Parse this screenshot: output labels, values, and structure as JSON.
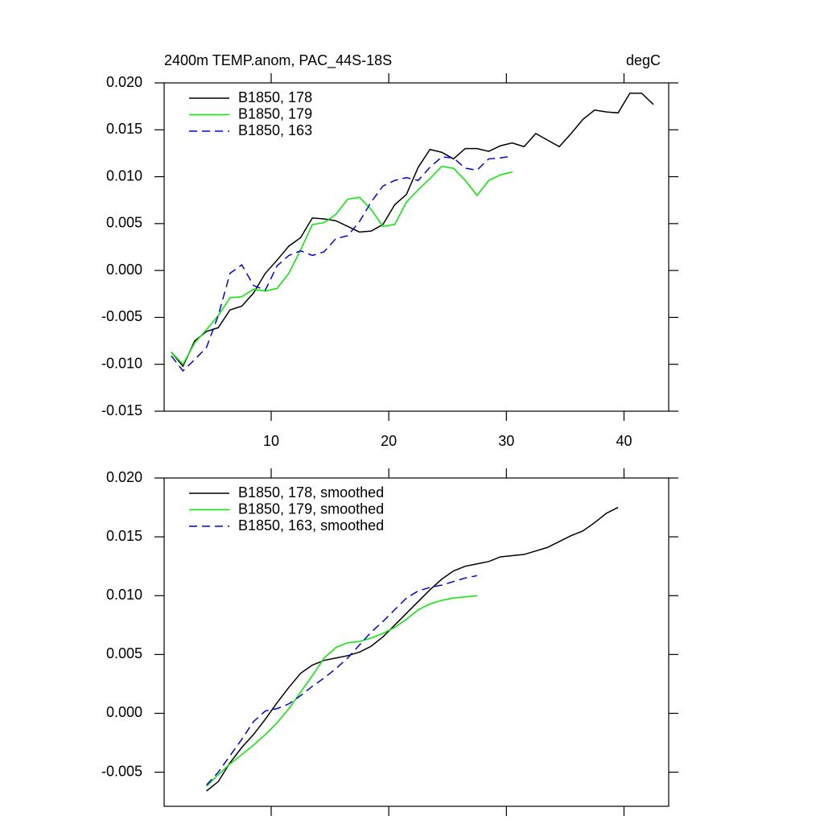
{
  "chart_data": [
    {
      "type": "line",
      "title": "2400m TEMP.anom, PAC_44S-18S",
      "units": "degC",
      "xlim": [
        0.9,
        43.8
      ],
      "xticks": [
        10,
        20,
        30,
        40
      ],
      "ylim": [
        -0.015,
        0.02
      ],
      "yticks": [
        {
          "value": -0.015,
          "label": "-0.015"
        },
        {
          "value": -0.01,
          "label": "-0.010"
        },
        {
          "value": -0.005,
          "label": "-0.005"
        },
        {
          "value": 0,
          "label": "0.000"
        },
        {
          "value": 0.005,
          "label": "0.005"
        },
        {
          "value": 0.01,
          "label": "0.010"
        },
        {
          "value": 0.015,
          "label": "0.015"
        },
        {
          "value": 0.02,
          "label": "0.020"
        }
      ],
      "series": [
        {
          "name": "B1850, 178",
          "color": "#000000",
          "dashed": false,
          "x": [
            1.5,
            2.5,
            3.5,
            4.5,
            5.5,
            6.5,
            7.5,
            8.5,
            9.5,
            10.5,
            11.5,
            12.5,
            13.5,
            14.5,
            15.5,
            16.5,
            17.5,
            18.5,
            19.5,
            20.5,
            21.5,
            22.5,
            23.5,
            24.5,
            25.5,
            26.5,
            27.5,
            28.5,
            29.5,
            30.5,
            31.5,
            32.5,
            33.5,
            34.5,
            35.5,
            36.5,
            37.5,
            38.5,
            39.5,
            40.5,
            41.5,
            42.5
          ],
          "values": [
            -0.0087,
            -0.0102,
            -0.0075,
            -0.0065,
            -0.0061,
            -0.0042,
            -0.0038,
            -0.0024,
            -0.0003,
            0.0011,
            0.0026,
            0.0035,
            0.0056,
            0.0055,
            0.0053,
            0.0047,
            0.0041,
            0.0042,
            0.0049,
            0.007,
            0.0081,
            0.011,
            0.0129,
            0.0126,
            0.0119,
            0.013,
            0.013,
            0.0127,
            0.0133,
            0.0136,
            0.0132,
            0.0146,
            0.0139,
            0.0132,
            0.0146,
            0.0161,
            0.0171,
            0.0169,
            0.0168,
            0.0189,
            0.0189,
            0.0177
          ]
        },
        {
          "name": "B1850, 179",
          "color": "#00ee00",
          "dashed": false,
          "x": [
            1.5,
            2.5,
            3.5,
            4.5,
            5.5,
            6.5,
            7.5,
            8.5,
            9.5,
            10.5,
            11.5,
            12.5,
            13.5,
            14.5,
            15.5,
            16.5,
            17.5,
            18.5,
            19.5,
            20.5,
            21.5,
            22.5,
            23.5,
            24.5,
            25.5,
            26.5,
            27.5,
            28.5,
            29.5,
            30.5
          ],
          "values": [
            -0.0087,
            -0.01,
            -0.0077,
            -0.0063,
            -0.0048,
            -0.0029,
            -0.0028,
            -0.002,
            -0.0022,
            -0.0019,
            -0.0003,
            0.0022,
            0.0049,
            0.0051,
            0.006,
            0.0076,
            0.0078,
            0.0065,
            0.0047,
            0.0049,
            0.0073,
            0.0086,
            0.0098,
            0.0111,
            0.0109,
            0.0096,
            0.008,
            0.0096,
            0.0102,
            0.0105
          ]
        },
        {
          "name": "B1850, 163",
          "color": "#0000ee",
          "dashed": true,
          "x": [
            1.5,
            2.5,
            3.5,
            4.5,
            5.5,
            6.5,
            7.5,
            8.5,
            9.5,
            10.5,
            11.5,
            12.5,
            13.5,
            14.5,
            15.5,
            16.5,
            17.5,
            18.5,
            19.5,
            20.5,
            21.5,
            22.5,
            23.5,
            24.5,
            25.5,
            26.5,
            27.5,
            28.5,
            29.5,
            30.5
          ],
          "values": [
            -0.0091,
            -0.0107,
            -0.0095,
            -0.0082,
            -0.0048,
            -0.0003,
            0.0006,
            -0.0016,
            -0.0021,
            0.0005,
            0.0016,
            0.0021,
            0.0016,
            0.002,
            0.0034,
            0.0037,
            0.0052,
            0.0073,
            0.009,
            0.0096,
            0.0099,
            0.0096,
            0.011,
            0.0121,
            0.012,
            0.0109,
            0.0107,
            0.0119,
            0.012,
            0.0122
          ]
        }
      ]
    },
    {
      "type": "line",
      "xlim": [
        0.9,
        43.8
      ],
      "xticks": [
        10,
        20,
        30,
        40
      ],
      "ylim": [
        -0.0079,
        0.02
      ],
      "yticks": [
        {
          "value": -0.005,
          "label": "-0.005"
        },
        {
          "value": 0,
          "label": "0.000"
        },
        {
          "value": 0.005,
          "label": "0.005"
        },
        {
          "value": 0.01,
          "label": "0.010"
        },
        {
          "value": 0.015,
          "label": "0.015"
        },
        {
          "value": 0.02,
          "label": "0.020"
        }
      ],
      "series": [
        {
          "name": "B1850, 178, smoothed",
          "color": "#000000",
          "dashed": false,
          "x": [
            4.5,
            5.5,
            6.5,
            7.5,
            8.5,
            9.5,
            10.5,
            11.5,
            12.5,
            13.5,
            14.5,
            15.5,
            16.5,
            17.5,
            18.5,
            19.5,
            20.5,
            21.5,
            22.5,
            23.5,
            24.5,
            25.5,
            26.5,
            27.5,
            28.5,
            29.5,
            30.5,
            31.5,
            32.5,
            33.5,
            34.5,
            35.5,
            36.5,
            37.5,
            38.5,
            39.5
          ],
          "values": [
            -0.0066,
            -0.0058,
            -0.0042,
            -0.0029,
            -0.0018,
            -0.0005,
            0.0009,
            0.0022,
            0.0034,
            0.0041,
            0.0045,
            0.0047,
            0.0049,
            0.0052,
            0.0057,
            0.0065,
            0.0075,
            0.0085,
            0.0095,
            0.0105,
            0.0114,
            0.0121,
            0.0125,
            0.0127,
            0.0129,
            0.0133,
            0.0134,
            0.0135,
            0.0138,
            0.0141,
            0.0146,
            0.0151,
            0.0155,
            0.0162,
            0.017,
            0.0175
          ]
        },
        {
          "name": "B1850, 179, smoothed",
          "color": "#00ee00",
          "dashed": false,
          "x": [
            4.5,
            5.5,
            6.5,
            7.5,
            8.5,
            9.5,
            10.5,
            11.5,
            12.5,
            13.5,
            14.5,
            15.5,
            16.5,
            17.5,
            18.5,
            19.5,
            20.5,
            21.5,
            22.5,
            23.5,
            24.5,
            25.5,
            26.5,
            27.5
          ],
          "values": [
            -0.0062,
            -0.0052,
            -0.0043,
            -0.0035,
            -0.0027,
            -0.0018,
            -0.0008,
            0.0004,
            0.0018,
            0.0032,
            0.0047,
            0.0056,
            0.006,
            0.0061,
            0.0064,
            0.0068,
            0.0073,
            0.008,
            0.0088,
            0.0093,
            0.0096,
            0.0098,
            0.0099,
            0.01
          ]
        },
        {
          "name": "B1850, 163, smoothed",
          "color": "#0000ee",
          "dashed": true,
          "x": [
            4.5,
            5.5,
            6.5,
            7.5,
            8.5,
            9.5,
            10.5,
            11.5,
            12.5,
            13.5,
            14.5,
            15.5,
            16.5,
            17.5,
            18.5,
            19.5,
            20.5,
            21.5,
            22.5,
            23.5,
            24.5,
            25.5,
            26.5,
            27.5
          ],
          "values": [
            -0.0061,
            -0.005,
            -0.0036,
            -0.0022,
            -0.0007,
            0.0002,
            0.0004,
            0.0008,
            0.0015,
            0.0023,
            0.003,
            0.0038,
            0.0047,
            0.0058,
            0.0069,
            0.0078,
            0.0088,
            0.0098,
            0.0104,
            0.0107,
            0.0109,
            0.0112,
            0.0115,
            0.0117
          ]
        }
      ]
    }
  ]
}
